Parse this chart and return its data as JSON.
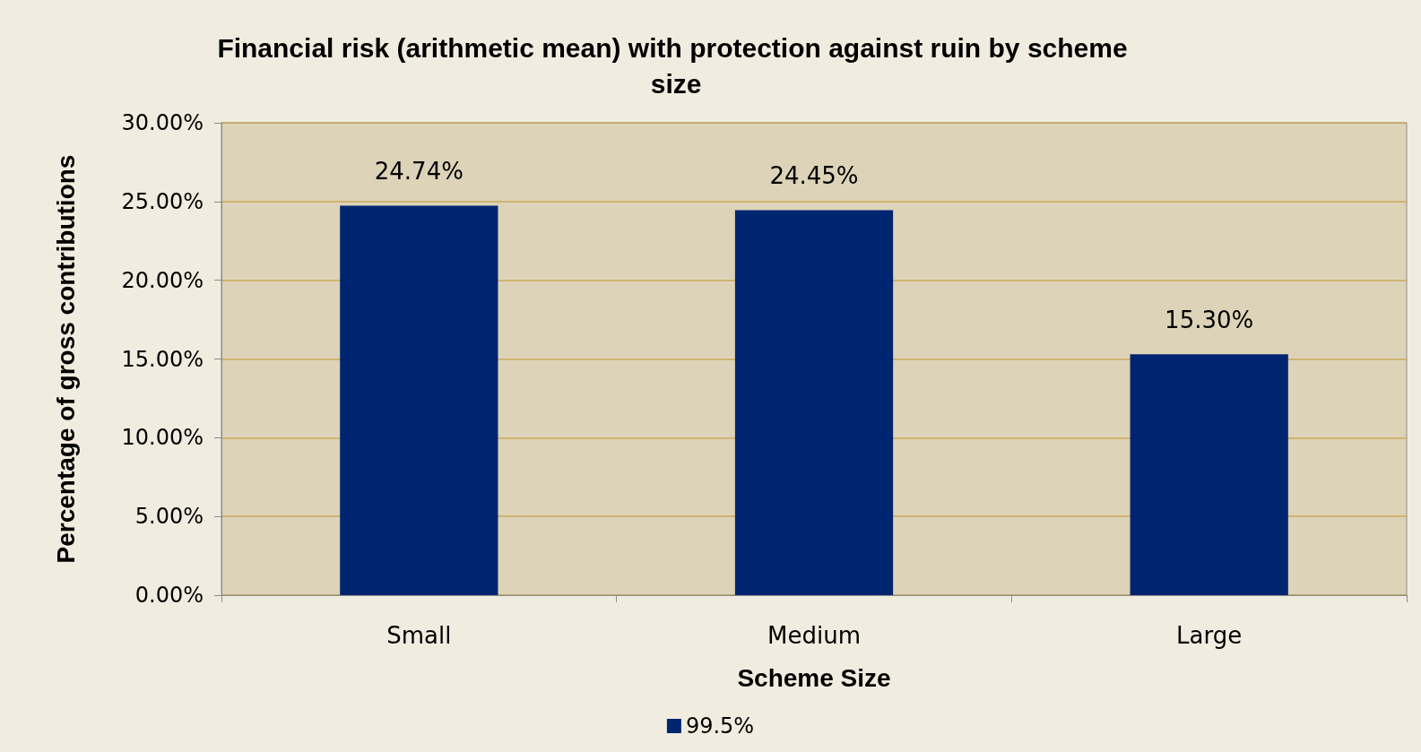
{
  "chart_data": {
    "type": "bar",
    "title": "Financial risk (arithmetic mean) with protection against ruin by scheme size",
    "xlabel": "Scheme Size",
    "ylabel": "Percentage of gross contributions",
    "categories": [
      "Small",
      "Medium",
      "Large"
    ],
    "series": [
      {
        "name": "99.5%",
        "color": "#002570",
        "values": [
          24.74,
          24.45,
          15.3
        ],
        "value_labels": [
          "24.74%",
          "24.45%",
          "15.30%"
        ]
      }
    ],
    "ylim": [
      0,
      30
    ],
    "yticks": [
      {
        "value": 0,
        "label": "0.00%"
      },
      {
        "value": 5,
        "label": "5.00%"
      },
      {
        "value": 10,
        "label": "10.00%"
      },
      {
        "value": 15,
        "label": "15.00%"
      },
      {
        "value": 20,
        "label": "20.00%"
      },
      {
        "value": 25,
        "label": "25.00%"
      },
      {
        "value": 30,
        "label": "30.00%"
      }
    ],
    "grid": "y",
    "legend": "bottom"
  }
}
